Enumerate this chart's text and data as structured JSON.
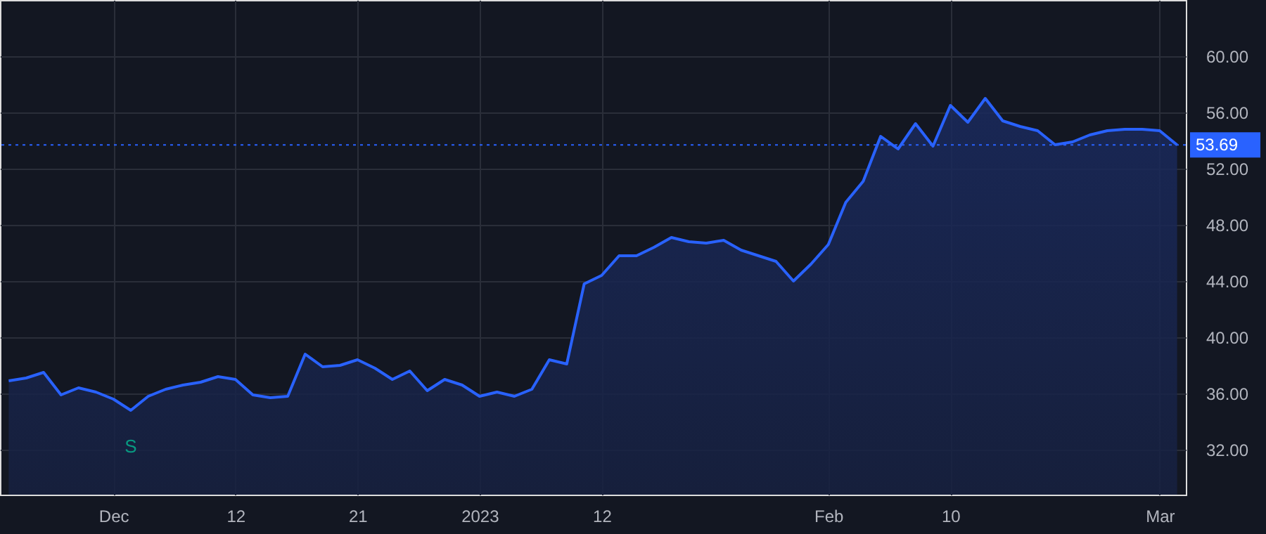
{
  "chart_data": {
    "type": "area",
    "categories": [
      null,
      null,
      null,
      null,
      null,
      null,
      "Dec",
      null,
      null,
      null,
      null,
      null,
      null,
      "12",
      null,
      null,
      null,
      null,
      null,
      null,
      "21",
      null,
      null,
      null,
      null,
      null,
      null,
      "2023",
      null,
      null,
      null,
      null,
      null,
      null,
      "12",
      null,
      null,
      null,
      null,
      null,
      null,
      null,
      null,
      null,
      null,
      null,
      null,
      "Feb",
      null,
      null,
      null,
      null,
      null,
      null,
      "10",
      null,
      null,
      null,
      null,
      null,
      null,
      null,
      null,
      null,
      null,
      null,
      "Mar",
      null
    ],
    "series": [
      {
        "color": "#2962ff",
        "values": [
          36.9,
          37.1,
          37.5,
          35.9,
          36.4,
          36.1,
          35.6,
          34.8,
          35.8,
          36.3,
          36.6,
          36.8,
          37.2,
          37.0,
          35.9,
          35.7,
          35.8,
          38.8,
          37.9,
          38.0,
          38.4,
          37.8,
          37.0,
          37.6,
          36.2,
          37.0,
          36.6,
          35.8,
          36.1,
          35.8,
          36.3,
          38.4,
          38.1,
          43.8,
          44.4,
          45.8,
          45.8,
          46.4,
          47.1,
          46.8,
          46.7,
          46.9,
          46.2,
          45.8,
          45.4,
          44.0,
          45.2,
          46.6,
          49.6,
          51.1,
          54.3,
          53.4,
          55.2,
          53.6,
          56.5,
          55.3,
          57.0,
          55.4,
          55.0,
          54.7,
          53.7,
          53.9,
          54.4,
          54.7,
          54.8,
          54.8,
          54.7,
          53.69
        ]
      }
    ],
    "ylim": [
      28.8,
      64
    ],
    "yticks": [
      {
        "value": 32,
        "label": "32.00"
      },
      {
        "value": 36,
        "label": "36.00"
      },
      {
        "value": 40,
        "label": "40.00"
      },
      {
        "value": 44,
        "label": "44.00"
      },
      {
        "value": 48,
        "label": "48.00"
      },
      {
        "value": 52,
        "label": "52.00"
      },
      {
        "value": 56,
        "label": "56.00"
      },
      {
        "value": 60,
        "label": "60.00"
      }
    ],
    "ref_lines": [
      {
        "axis": "y",
        "value": 53.69,
        "label": "53.69",
        "color": "#2962ff",
        "line_style": "dotted"
      }
    ],
    "annotations": [
      "S"
    ],
    "grid": true,
    "marker": "none"
  }
}
